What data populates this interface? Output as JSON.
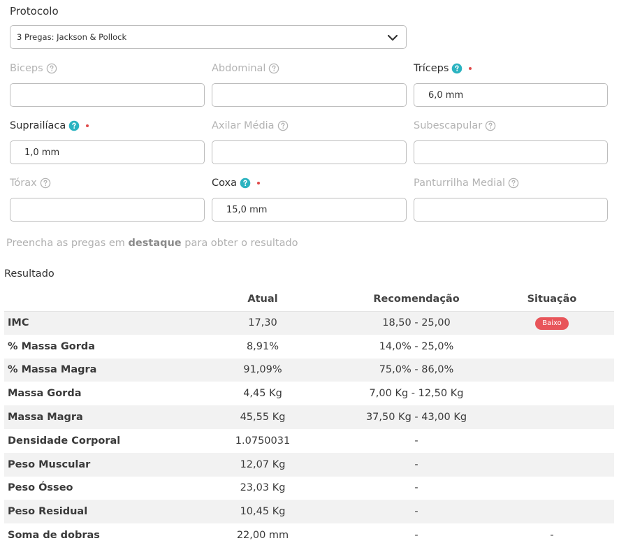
{
  "protocol": {
    "label": "Protocolo",
    "selected": "3 Pregas: Jackson & Pollock"
  },
  "fields": [
    {
      "label": "Biceps",
      "value": "",
      "active": false
    },
    {
      "label": "Abdominal",
      "value": "",
      "active": false
    },
    {
      "label": "Tríceps",
      "value": "6,0 mm",
      "active": true
    },
    {
      "label": "Suprailíaca",
      "value": "1,0 mm",
      "active": true
    },
    {
      "label": "Axilar Média",
      "value": "",
      "active": false
    },
    {
      "label": "Subescapular",
      "value": "",
      "active": false
    },
    {
      "label": "Tórax",
      "value": "",
      "active": false
    },
    {
      "label": "Coxa",
      "value": "15,0 mm",
      "active": true
    },
    {
      "label": "Panturrilha Medial",
      "value": "",
      "active": false
    }
  ],
  "hint": {
    "before": "Preencha as pregas em ",
    "strong": "destaque",
    "after": " para obter o resultado"
  },
  "result": {
    "title": "Resultado",
    "headers": [
      "",
      "Atual",
      "Recomendação",
      "Situação"
    ],
    "rows": [
      {
        "name": "IMC",
        "atual": "17,30",
        "rec": "18,50 - 25,00",
        "sit": "Baixo",
        "badge": true
      },
      {
        "name": "% Massa Gorda",
        "atual": "8,91%",
        "rec": "14,0% - 25,0%",
        "sit": ""
      },
      {
        "name": "% Massa Magra",
        "atual": "91,09%",
        "rec": "75,0% - 86,0%",
        "sit": ""
      },
      {
        "name": "Massa Gorda",
        "atual": "4,45 Kg",
        "rec": "7,00 Kg - 12,50 Kg",
        "sit": ""
      },
      {
        "name": "Massa Magra",
        "atual": "45,55 Kg",
        "rec": "37,50 Kg - 43,00 Kg",
        "sit": ""
      },
      {
        "name": "Densidade Corporal",
        "atual": "1.0750031",
        "rec": "-",
        "sit": ""
      },
      {
        "name": "Peso Muscular",
        "atual": "12,07 Kg",
        "rec": "-",
        "sit": ""
      },
      {
        "name": "Peso Ósseo",
        "atual": "23,03 Kg",
        "rec": "-",
        "sit": ""
      },
      {
        "name": "Peso Residual",
        "atual": "10,45 Kg",
        "rec": "-",
        "sit": ""
      },
      {
        "name": "Soma de dobras",
        "atual": "22,00 mm",
        "rec": "-",
        "sit": "-"
      }
    ]
  },
  "colors": {
    "accent": "#2bb3c0",
    "required": "#e04a4a",
    "badge": "#e8555a"
  }
}
